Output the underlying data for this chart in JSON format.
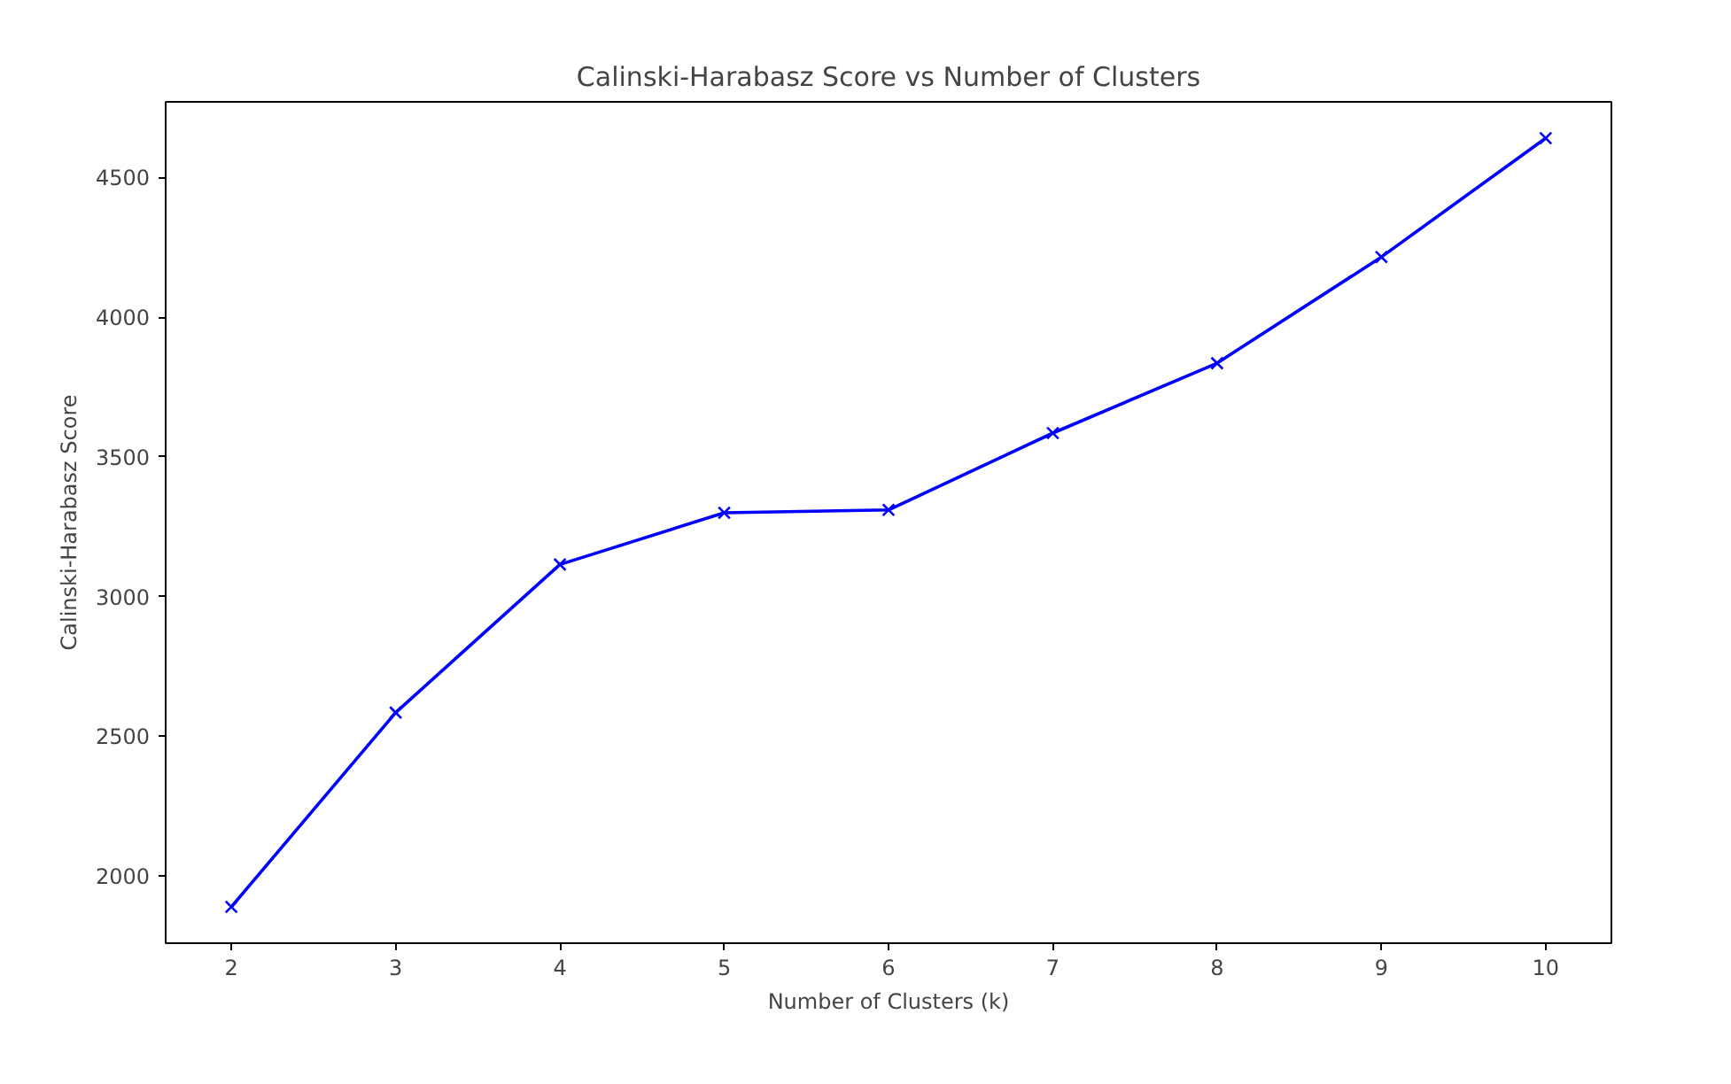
{
  "chart_data": {
    "type": "line",
    "title": "Calinski-Harabasz Score vs Number of Clusters",
    "xlabel": "Number of Clusters (k)",
    "ylabel": "Calinski-Harabasz Score",
    "x": [
      2,
      3,
      4,
      5,
      6,
      7,
      8,
      9,
      10
    ],
    "series": [
      {
        "color": "#0000ff",
        "values": [
          1890,
          2585,
          3115,
          3300,
          3310,
          3585,
          3835,
          4215,
          4640
        ]
      }
    ],
    "xlim": [
      1.6,
      10.4
    ],
    "ylim": [
      1760,
      4770
    ],
    "xticks": [
      2,
      3,
      4,
      5,
      6,
      7,
      8,
      9,
      10
    ],
    "yticks": [
      2000,
      2500,
      3000,
      3500,
      4000,
      4500
    ],
    "marker": "cross",
    "line_style": "solid",
    "grid": false
  }
}
